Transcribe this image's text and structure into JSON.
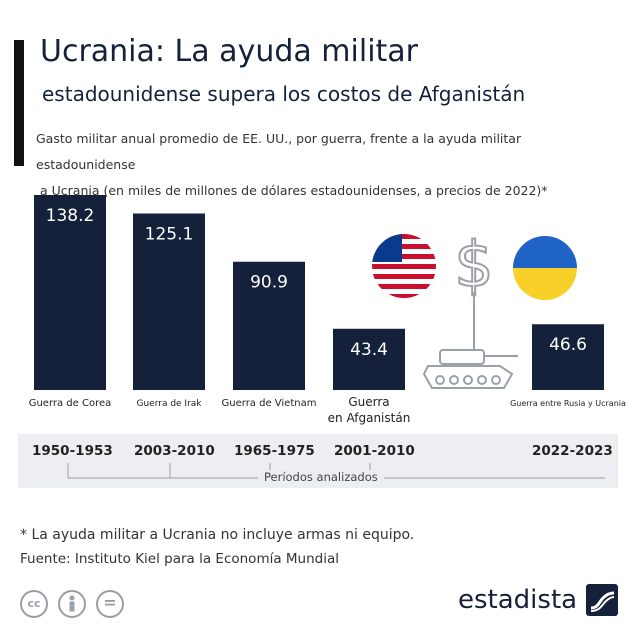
{
  "header": {
    "title_line1": "Ucrania: La ayuda militar",
    "title_line2": "estadounidense supera los costos de Afganistán",
    "subtitle_line1": "Gasto militar anual promedio de EE. UU., por guerra, frente a la ayuda militar estadounidense",
    "subtitle_line2": "a Ucrania (en miles de millones de dólares estadounidenses, a precios de 2022)*"
  },
  "chart_data": {
    "type": "bar",
    "title": "Ucrania: La ayuda militar estadounidense supera los costos de Afganistán",
    "categories": [
      "Guerra de Corea",
      "Guerra de Irak",
      "Guerra de Vietnam",
      "Guerra en Afganistán",
      "Guerra entre Rusia y Ucrania"
    ],
    "values": [
      138.2,
      125.1,
      90.9,
      43.4,
      46.6
    ],
    "value_labels": [
      "138.2",
      "125.1",
      "90.9",
      "43.4",
      "46.6"
    ],
    "periods": [
      "1950-1953",
      "2003-2010",
      "1965-1975",
      "2001-2010",
      "2022-2023"
    ],
    "xlabel": "Períodos analizados",
    "ylabel": "",
    "ylim": [
      0,
      138.2
    ],
    "bar_color": "#15213a",
    "grid": false
  },
  "icons": {
    "usa_flag": "us-flag-icon",
    "dollar": "dollar-sign-icon",
    "ukraine_flag": "ukraine-flag-icon",
    "tank": "tank-icon",
    "ukraine_blue": "#1f63c6",
    "ukraine_yellow": "#f7d02a",
    "usa_red": "#c8102e",
    "usa_blue": "#0a3a8c"
  },
  "footer": {
    "footnote": "* La ayuda militar a Ucrania no incluye armas ni equipo.",
    "source": "Fuente: Instituto Kiel para la Economía Mundial",
    "brand": "estadista",
    "license_cc": "cc",
    "license_eq": "="
  }
}
